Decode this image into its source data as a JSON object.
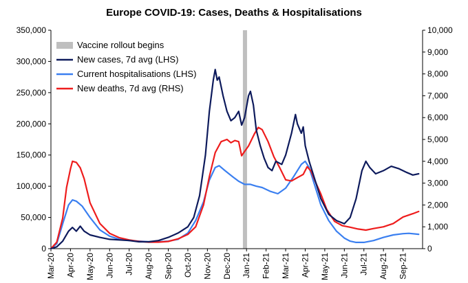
{
  "chart_data": {
    "type": "line",
    "title": "Europe COVID-19: Cases, Deaths & Hospitalisations",
    "x_tick_labels": [
      "Mar-20",
      "Apr-20",
      "May-20",
      "Jun-20",
      "Jul-20",
      "Aug-20",
      "Sep-20",
      "Oct-20",
      "Nov-20",
      "Dec-20",
      "Jan-21",
      "Feb-21",
      "Mar-21",
      "Apr-21",
      "May-21",
      "Jun-21",
      "Jul-21",
      "Aug-21",
      "Sep-21"
    ],
    "x_range": [
      0,
      19
    ],
    "y_left": {
      "range": [
        0,
        350000
      ],
      "ticks": [
        "0",
        "50,000",
        "100,000",
        "150,000",
        "200,000",
        "250,000",
        "300,000",
        "350,000"
      ]
    },
    "y_right": {
      "range": [
        0,
        10000
      ],
      "ticks": [
        "0",
        "1,000",
        "2,000",
        "3,000",
        "4,000",
        "5,000",
        "6,000",
        "7,000",
        "8,000",
        "9,000",
        "10,000"
      ]
    },
    "grid": false,
    "legend_position": "top-left",
    "vaccine_marker": {
      "label": "Vaccine rollout begins",
      "x": 9.92,
      "color": "#bfbfbf"
    },
    "series": [
      {
        "name": "New cases, 7d avg (LHS)",
        "axis": "left",
        "color": "#0d1a5c",
        "points": [
          [
            0,
            0
          ],
          [
            0.3,
            3000
          ],
          [
            0.6,
            12000
          ],
          [
            0.9,
            28000
          ],
          [
            1.1,
            34000
          ],
          [
            1.3,
            28000
          ],
          [
            1.5,
            36000
          ],
          [
            1.7,
            28000
          ],
          [
            2,
            22000
          ],
          [
            2.5,
            18000
          ],
          [
            3,
            15000
          ],
          [
            3.5,
            14000
          ],
          [
            4,
            13000
          ],
          [
            4.5,
            11000
          ],
          [
            5,
            11000
          ],
          [
            5.5,
            13000
          ],
          [
            6,
            18000
          ],
          [
            6.5,
            25000
          ],
          [
            7,
            35000
          ],
          [
            7.3,
            50000
          ],
          [
            7.6,
            85000
          ],
          [
            7.9,
            150000
          ],
          [
            8.1,
            220000
          ],
          [
            8.3,
            270000
          ],
          [
            8.4,
            287000
          ],
          [
            8.5,
            270000
          ],
          [
            8.6,
            275000
          ],
          [
            8.8,
            245000
          ],
          [
            9,
            220000
          ],
          [
            9.2,
            205000
          ],
          [
            9.4,
            210000
          ],
          [
            9.6,
            220000
          ],
          [
            9.75,
            198000
          ],
          [
            9.9,
            210000
          ],
          [
            10.1,
            245000
          ],
          [
            10.2,
            252000
          ],
          [
            10.35,
            230000
          ],
          [
            10.5,
            190000
          ],
          [
            10.7,
            165000
          ],
          [
            10.9,
            145000
          ],
          [
            11.1,
            130000
          ],
          [
            11.3,
            125000
          ],
          [
            11.5,
            140000
          ],
          [
            11.8,
            135000
          ],
          [
            12,
            150000
          ],
          [
            12.3,
            185000
          ],
          [
            12.5,
            215000
          ],
          [
            12.6,
            200000
          ],
          [
            12.8,
            185000
          ],
          [
            12.9,
            195000
          ],
          [
            13,
            165000
          ],
          [
            13.2,
            140000
          ],
          [
            13.5,
            110000
          ],
          [
            13.8,
            80000
          ],
          [
            14.2,
            55000
          ],
          [
            14.6,
            45000
          ],
          [
            15,
            40000
          ],
          [
            15.3,
            50000
          ],
          [
            15.6,
            80000
          ],
          [
            15.9,
            125000
          ],
          [
            16.1,
            140000
          ],
          [
            16.3,
            130000
          ],
          [
            16.6,
            120000
          ],
          [
            17,
            125000
          ],
          [
            17.4,
            132000
          ],
          [
            17.8,
            128000
          ],
          [
            18.2,
            122000
          ],
          [
            18.5,
            118000
          ],
          [
            18.8,
            120000
          ]
        ]
      },
      {
        "name": "Current hospitalisations (LHS)",
        "axis": "left",
        "color": "#3a7ff0",
        "points": [
          [
            0,
            0
          ],
          [
            0.3,
            8000
          ],
          [
            0.6,
            40000
          ],
          [
            0.9,
            70000
          ],
          [
            1.1,
            78000
          ],
          [
            1.3,
            76000
          ],
          [
            1.6,
            68000
          ],
          [
            2,
            50000
          ],
          [
            2.5,
            30000
          ],
          [
            3,
            20000
          ],
          [
            3.5,
            15000
          ],
          [
            4,
            13000
          ],
          [
            4.5,
            12000
          ],
          [
            5,
            11000
          ],
          [
            5.5,
            11000
          ],
          [
            6,
            12000
          ],
          [
            6.5,
            15000
          ],
          [
            7,
            25000
          ],
          [
            7.4,
            45000
          ],
          [
            7.8,
            75000
          ],
          [
            8.1,
            110000
          ],
          [
            8.4,
            130000
          ],
          [
            8.6,
            133000
          ],
          [
            8.9,
            125000
          ],
          [
            9.3,
            115000
          ],
          [
            9.6,
            108000
          ],
          [
            9.9,
            103000
          ],
          [
            10.2,
            103000
          ],
          [
            10.5,
            100000
          ],
          [
            10.8,
            98000
          ],
          [
            11.2,
            92000
          ],
          [
            11.6,
            88000
          ],
          [
            12,
            97000
          ],
          [
            12.4,
            115000
          ],
          [
            12.8,
            135000
          ],
          [
            13,
            140000
          ],
          [
            13.2,
            130000
          ],
          [
            13.5,
            100000
          ],
          [
            13.8,
            70000
          ],
          [
            14.2,
            45000
          ],
          [
            14.6,
            28000
          ],
          [
            15,
            17000
          ],
          [
            15.3,
            12000
          ],
          [
            15.6,
            10000
          ],
          [
            16,
            10000
          ],
          [
            16.5,
            13000
          ],
          [
            17,
            18000
          ],
          [
            17.5,
            22000
          ],
          [
            18,
            24000
          ],
          [
            18.3,
            24500
          ],
          [
            18.8,
            23000
          ]
        ]
      },
      {
        "name": "New deaths, 7d avg (RHS)",
        "axis": "right",
        "color": "#ee1c1c",
        "points": [
          [
            0,
            0
          ],
          [
            0.3,
            300
          ],
          [
            0.6,
            1400
          ],
          [
            0.8,
            2800
          ],
          [
            1,
            3650
          ],
          [
            1.1,
            4000
          ],
          [
            1.3,
            3950
          ],
          [
            1.5,
            3700
          ],
          [
            1.7,
            3200
          ],
          [
            2,
            2100
          ],
          [
            2.5,
            1150
          ],
          [
            3,
            700
          ],
          [
            3.5,
            500
          ],
          [
            4,
            400
          ],
          [
            4.5,
            330
          ],
          [
            5,
            300
          ],
          [
            5.5,
            300
          ],
          [
            6,
            330
          ],
          [
            6.5,
            450
          ],
          [
            7,
            650
          ],
          [
            7.4,
            1000
          ],
          [
            7.8,
            2000
          ],
          [
            8.1,
            3300
          ],
          [
            8.4,
            4400
          ],
          [
            8.7,
            4900
          ],
          [
            9,
            5000
          ],
          [
            9.2,
            4850
          ],
          [
            9.4,
            4950
          ],
          [
            9.6,
            4900
          ],
          [
            9.75,
            4250
          ],
          [
            9.9,
            4450
          ],
          [
            10.1,
            4700
          ],
          [
            10.4,
            5250
          ],
          [
            10.6,
            5550
          ],
          [
            10.8,
            5450
          ],
          [
            11.1,
            4900
          ],
          [
            11.4,
            4200
          ],
          [
            11.7,
            3700
          ],
          [
            12,
            3150
          ],
          [
            12.3,
            3100
          ],
          [
            12.6,
            3250
          ],
          [
            12.9,
            3400
          ],
          [
            13.1,
            3750
          ],
          [
            13.3,
            3550
          ],
          [
            13.5,
            3100
          ],
          [
            13.8,
            2500
          ],
          [
            14.1,
            1800
          ],
          [
            14.5,
            1250
          ],
          [
            14.9,
            1050
          ],
          [
            15.3,
            980
          ],
          [
            15.7,
            900
          ],
          [
            16.1,
            850
          ],
          [
            16.5,
            920
          ],
          [
            17,
            1000
          ],
          [
            17.5,
            1150
          ],
          [
            18,
            1450
          ],
          [
            18.5,
            1600
          ],
          [
            18.8,
            1700
          ]
        ]
      }
    ]
  }
}
